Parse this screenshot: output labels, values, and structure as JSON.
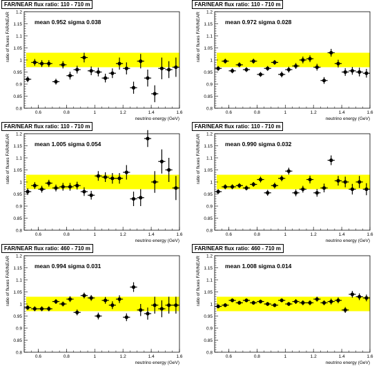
{
  "chart_data": [
    {
      "type": "scatter",
      "title": "FAR/NEAR flux ratio: 110 - 710 m",
      "annotation": "mean 0.952 sigma 0.038",
      "xlabel": "neutrino energy  (GeV)",
      "ylabel": "ratio of fluxes FAR/NEAR",
      "xlim": [
        0.5,
        1.6
      ],
      "ylim": [
        0.8,
        1.2
      ],
      "xticks": [
        "0.6",
        "0.8",
        "1",
        "1.2",
        "1.4",
        "1.6"
      ],
      "yticks": [
        "0.8",
        "0.85",
        "0.9",
        "0.95",
        "1",
        "1.05",
        "1.1",
        "1.15",
        "1.2"
      ],
      "band": [
        0.97,
        1.03
      ],
      "band_color": "#ffff00",
      "marker_color": "#000000",
      "series": [
        {
          "x": [
            0.525,
            0.575,
            0.625,
            0.675,
            0.725,
            0.775,
            0.825,
            0.875,
            0.925,
            0.975,
            1.025,
            1.075,
            1.125,
            1.175,
            1.225,
            1.275,
            1.325,
            1.375,
            1.425,
            1.475,
            1.525,
            1.575
          ],
          "y": [
            0.92,
            0.99,
            0.985,
            0.985,
            0.91,
            0.98,
            0.935,
            0.96,
            1.01,
            0.955,
            0.95,
            0.925,
            0.945,
            0.985,
            0.965,
            0.885,
            0.995,
            0.925,
            0.86,
            0.965,
            0.96,
            0.97
          ],
          "err": [
            0.012,
            0.014,
            0.014,
            0.014,
            0.012,
            0.015,
            0.016,
            0.016,
            0.02,
            0.018,
            0.018,
            0.018,
            0.02,
            0.025,
            0.025,
            0.025,
            0.03,
            0.035,
            0.035,
            0.045,
            0.035,
            0.04
          ]
        }
      ]
    },
    {
      "type": "scatter",
      "title": "FAR/NEAR flux ratio: 110 - 710 m",
      "annotation": "mean 0.972 sigma 0.028",
      "xlabel": "neutrino energy  (GeV)",
      "ylabel": "ratio of fluxes FAR/NEAR",
      "xlim": [
        0.5,
        1.6
      ],
      "ylim": [
        0.8,
        1.2
      ],
      "xticks": [
        "0.6",
        "0.8",
        "1",
        "1.2",
        "1.4",
        "1.6"
      ],
      "yticks": [
        "0.8",
        "0.85",
        "0.9",
        "0.95",
        "1",
        "1.05",
        "1.1",
        "1.15",
        "1.2"
      ],
      "band": [
        0.97,
        1.03
      ],
      "band_color": "#ffff00",
      "marker_color": "#000000",
      "series": [
        {
          "x": [
            0.525,
            0.575,
            0.625,
            0.675,
            0.725,
            0.775,
            0.825,
            0.875,
            0.925,
            0.975,
            1.025,
            1.075,
            1.125,
            1.175,
            1.225,
            1.275,
            1.325,
            1.375,
            1.425,
            1.475,
            1.525,
            1.575
          ],
          "y": [
            0.965,
            0.995,
            0.955,
            0.98,
            0.96,
            0.995,
            0.94,
            0.965,
            0.99,
            0.94,
            0.96,
            0.975,
            1.0,
            1.005,
            0.97,
            0.915,
            1.03,
            0.985,
            0.95,
            0.955,
            0.95,
            0.945
          ],
          "err": [
            0.01,
            0.01,
            0.01,
            0.01,
            0.01,
            0.01,
            0.01,
            0.01,
            0.01,
            0.012,
            0.012,
            0.012,
            0.014,
            0.014,
            0.014,
            0.014,
            0.016,
            0.016,
            0.016,
            0.016,
            0.018,
            0.018
          ]
        }
      ]
    },
    {
      "type": "scatter",
      "title": "FAR/NEAR flux ratio: 110 - 710 m",
      "annotation": "mean 1.005 sigma 0.054",
      "xlabel": "neutrino energy  (GeV)",
      "ylabel": "ratio of fluxes FAR/NEAR",
      "xlim": [
        0.5,
        1.6
      ],
      "ylim": [
        0.8,
        1.2
      ],
      "xticks": [
        "0.6",
        "0.8",
        "1",
        "1.2",
        "1.4",
        "1.6"
      ],
      "yticks": [
        "0.8",
        "0.85",
        "0.9",
        "0.95",
        "1",
        "1.05",
        "1.1",
        "1.15",
        "1.2"
      ],
      "band": [
        0.97,
        1.03
      ],
      "band_color": "#ffff00",
      "marker_color": "#000000",
      "series": [
        {
          "x": [
            0.525,
            0.575,
            0.625,
            0.675,
            0.725,
            0.775,
            0.825,
            0.875,
            0.925,
            0.975,
            1.025,
            1.075,
            1.125,
            1.175,
            1.225,
            1.275,
            1.325,
            1.375,
            1.425,
            1.475,
            1.525,
            1.575
          ],
          "y": [
            0.96,
            0.985,
            0.97,
            0.995,
            0.975,
            0.98,
            0.98,
            0.985,
            0.96,
            0.945,
            1.025,
            1.02,
            1.015,
            1.015,
            1.04,
            0.93,
            0.935,
            1.18,
            1.0,
            1.085,
            1.05,
            0.975
          ],
          "err": [
            0.014,
            0.014,
            0.014,
            0.014,
            0.014,
            0.016,
            0.016,
            0.016,
            0.018,
            0.018,
            0.02,
            0.02,
            0.022,
            0.022,
            0.03,
            0.03,
            0.035,
            0.035,
            0.045,
            0.05,
            0.05,
            0.05
          ]
        }
      ]
    },
    {
      "type": "scatter",
      "title": "FAR/NEAR flux ratio: 110 - 710 m",
      "annotation": "mean 0.990 sigma 0.032",
      "xlabel": "neutrino energy  (GeV)",
      "ylabel": "ratio of fluxes FAR/NEAR",
      "xlim": [
        0.5,
        1.6
      ],
      "ylim": [
        0.8,
        1.2
      ],
      "xticks": [
        "0.6",
        "0.8",
        "1",
        "1.2",
        "1.4",
        "1.6"
      ],
      "yticks": [
        "0.8",
        "0.85",
        "0.9",
        "0.95",
        "1",
        "1.05",
        "1.1",
        "1.15",
        "1.2"
      ],
      "band": [
        0.97,
        1.03
      ],
      "band_color": "#ffff00",
      "marker_color": "#000000",
      "series": [
        {
          "x": [
            0.525,
            0.575,
            0.625,
            0.675,
            0.725,
            0.775,
            0.825,
            0.875,
            0.925,
            0.975,
            1.025,
            1.075,
            1.125,
            1.175,
            1.225,
            1.275,
            1.325,
            1.375,
            1.425,
            1.475,
            1.525,
            1.575
          ],
          "y": [
            0.96,
            0.98,
            0.98,
            0.985,
            0.975,
            0.99,
            1.01,
            0.955,
            0.985,
            1.015,
            1.045,
            0.955,
            0.97,
            1.01,
            0.955,
            0.975,
            1.09,
            1.005,
            1.0,
            0.97,
            1.0,
            0.97
          ],
          "err": [
            0.01,
            0.01,
            0.01,
            0.01,
            0.01,
            0.01,
            0.012,
            0.012,
            0.012,
            0.012,
            0.014,
            0.014,
            0.014,
            0.016,
            0.016,
            0.018,
            0.02,
            0.02,
            0.022,
            0.022,
            0.025,
            0.025
          ]
        }
      ]
    },
    {
      "type": "scatter",
      "title": "FAR/NEAR flux ratio: 460 - 710 m",
      "annotation": "mean 0.994 sigma 0.031",
      "xlabel": "neutrino energy  (GeV)",
      "ylabel": "ratio of fluxes FAR/NEAR",
      "xlim": [
        0.5,
        1.6
      ],
      "ylim": [
        0.8,
        1.2
      ],
      "xticks": [
        "0.6",
        "0.8",
        "1",
        "1.2",
        "1.4",
        "1.6"
      ],
      "yticks": [
        "0.8",
        "0.85",
        "0.9",
        "0.95",
        "1",
        "1.05",
        "1.1",
        "1.15",
        "1.2"
      ],
      "band": [
        0.97,
        1.03
      ],
      "band_color": "#ffff00",
      "marker_color": "#000000",
      "series": [
        {
          "x": [
            0.525,
            0.575,
            0.625,
            0.675,
            0.725,
            0.775,
            0.825,
            0.875,
            0.925,
            0.975,
            1.025,
            1.075,
            1.125,
            1.175,
            1.225,
            1.275,
            1.325,
            1.375,
            1.425,
            1.475,
            1.525,
            1.575
          ],
          "y": [
            0.985,
            0.98,
            0.98,
            0.98,
            1.01,
            1.0,
            1.02,
            0.965,
            1.035,
            1.025,
            0.95,
            1.015,
            0.995,
            1.02,
            0.945,
            1.07,
            0.975,
            0.96,
            0.995,
            0.98,
            0.995,
            0.995
          ],
          "err": [
            0.01,
            0.01,
            0.01,
            0.01,
            0.01,
            0.01,
            0.012,
            0.012,
            0.012,
            0.012,
            0.014,
            0.014,
            0.016,
            0.016,
            0.016,
            0.02,
            0.025,
            0.025,
            0.035,
            0.035,
            0.035,
            0.035
          ]
        }
      ]
    },
    {
      "type": "scatter",
      "title": "FAR/NEAR flux ratio: 460 - 710 m",
      "annotation": "mean 1.008 sigma 0.014",
      "xlabel": "neutrino energy  (GeV)",
      "ylabel": "ratio of fluxes FAR/NEAR",
      "xlim": [
        0.5,
        1.6
      ],
      "ylim": [
        0.8,
        1.2
      ],
      "xticks": [
        "0.6",
        "0.8",
        "1",
        "1.2",
        "1.4",
        "1.6"
      ],
      "yticks": [
        "0.8",
        "0.85",
        "0.9",
        "0.95",
        "1",
        "1.05",
        "1.1",
        "1.15",
        "1.2"
      ],
      "band": [
        0.97,
        1.03
      ],
      "band_color": "#ffff00",
      "marker_color": "#000000",
      "series": [
        {
          "x": [
            0.525,
            0.575,
            0.625,
            0.675,
            0.725,
            0.775,
            0.825,
            0.875,
            0.925,
            0.975,
            1.025,
            1.075,
            1.125,
            1.175,
            1.225,
            1.275,
            1.325,
            1.375,
            1.425,
            1.475,
            1.525,
            1.575
          ],
          "y": [
            0.99,
            0.995,
            1.015,
            1.005,
            1.015,
            1.005,
            1.01,
            1.0,
            0.995,
            1.015,
            1.0,
            1.01,
            1.005,
            1.005,
            1.02,
            1.005,
            1.01,
            1.015,
            0.975,
            1.04,
            1.03,
            1.025
          ],
          "err": [
            0.008,
            0.008,
            0.008,
            0.008,
            0.008,
            0.008,
            0.008,
            0.008,
            0.008,
            0.008,
            0.008,
            0.01,
            0.01,
            0.01,
            0.01,
            0.01,
            0.012,
            0.012,
            0.012,
            0.014,
            0.014,
            0.014
          ]
        }
      ]
    }
  ]
}
